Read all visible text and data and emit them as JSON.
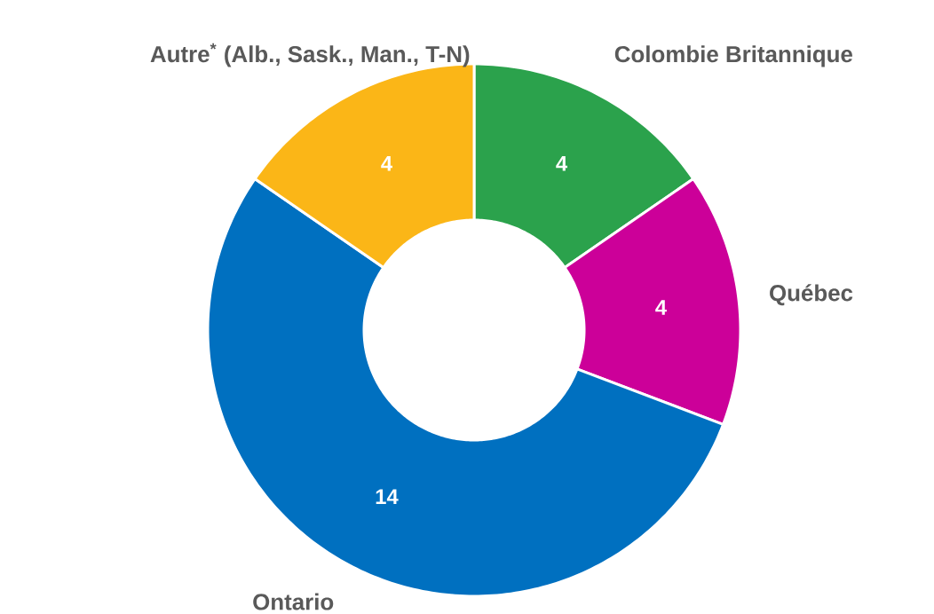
{
  "chart_data": {
    "type": "donut",
    "categories": [
      "Colombie Britannique",
      "Québec",
      "Ontario",
      "Autre$^{*}$ (Alb., Sask., Man., T-N)"
    ],
    "values": [
      4,
      4,
      14,
      4
    ],
    "colors": [
      "#2ba24c",
      "#cc0099",
      "#0070c0",
      "#fbb617"
    ],
    "data_labels": true
  }
}
